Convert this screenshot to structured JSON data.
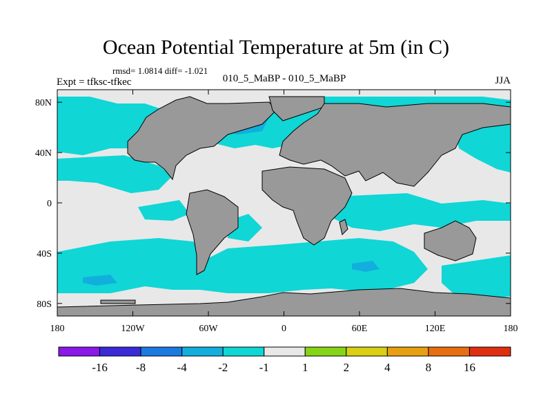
{
  "title": "Ocean Potential Temperature at 5m (in C)",
  "stats_text": "rmsd= 1.0814 diff= -1.021",
  "experiment_label": "Expt = tfksc-tfkec",
  "case_label": "010_5_MaBP - 010_5_MaBP",
  "season_label": "JJA",
  "map": {
    "projection": "cylindrical-equidistant",
    "lon_range": [
      -180,
      180
    ],
    "lat_range": [
      -90,
      90
    ],
    "lat_ticks": [
      {
        "value": 80,
        "label": "80N"
      },
      {
        "value": 40,
        "label": "40N"
      },
      {
        "value": 0,
        "label": "0"
      },
      {
        "value": -40,
        "label": "40S"
      },
      {
        "value": -80,
        "label": "80S"
      }
    ],
    "lon_ticks": [
      {
        "value": -180,
        "label": "180"
      },
      {
        "value": -120,
        "label": "120W"
      },
      {
        "value": -60,
        "label": "60W"
      },
      {
        "value": 0,
        "label": "0"
      },
      {
        "value": 60,
        "label": "60E"
      },
      {
        "value": 120,
        "label": "120E"
      },
      {
        "value": 180,
        "label": "180"
      }
    ],
    "land_color": "#999999",
    "ocean_neutral_color": "#e8e8e8"
  },
  "colorbar": {
    "colors": [
      "#8a18e8",
      "#3a2ad8",
      "#1a7ae0",
      "#12aede",
      "#10d6d6",
      "#e8e8e8",
      "#86d416",
      "#d8d012",
      "#e8a010",
      "#e86e12",
      "#e02e10"
    ],
    "levels": [
      {
        "value": -16,
        "label": "-16"
      },
      {
        "value": -8,
        "label": "-8"
      },
      {
        "value": -4,
        "label": "-4"
      },
      {
        "value": -2,
        "label": "-2"
      },
      {
        "value": -1,
        "label": "-1"
      },
      {
        "value": 1,
        "label": "1"
      },
      {
        "value": 2,
        "label": "2"
      },
      {
        "value": 4,
        "label": "4"
      },
      {
        "value": 8,
        "label": "8"
      },
      {
        "value": 16,
        "label": "16"
      }
    ]
  }
}
